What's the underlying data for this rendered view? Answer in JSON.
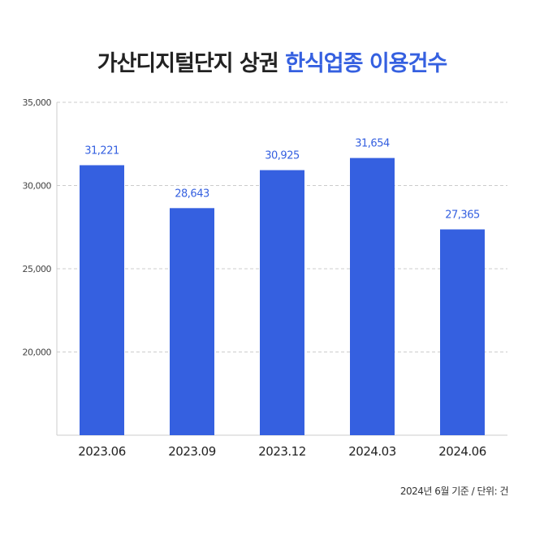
{
  "chart_data": {
    "type": "bar",
    "title_main": "가산디지털단지 상권",
    "title_accent": "한식업종 이용건수",
    "categories": [
      "2023.06",
      "2023.09",
      "2023.12",
      "2024.03",
      "2024.06"
    ],
    "values": [
      31221,
      28643,
      30925,
      31654,
      27365
    ],
    "value_labels": [
      "31,221",
      "28,643",
      "30,925",
      "31,654",
      "27,365"
    ],
    "y_ticks": [
      "20,000",
      "25,000",
      "30,000",
      "35,000"
    ],
    "y_tick_values": [
      20000,
      25000,
      30000,
      35000
    ],
    "ylim": [
      15000,
      35000
    ],
    "grid": true,
    "bar_color": "#3560e0",
    "label_color": "#3560e0"
  },
  "footnote": "2024년 6월 기준 / 단위: 건"
}
